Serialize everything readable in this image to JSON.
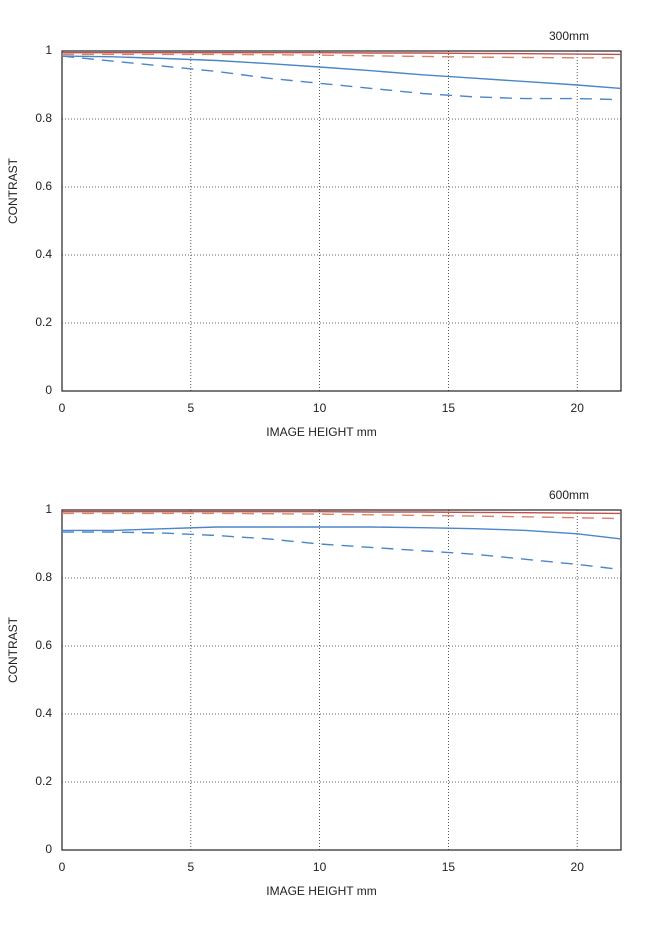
{
  "chart_data": [
    {
      "type": "line",
      "title": "300mm",
      "xlabel": "IMAGE HEIGHT   mm",
      "ylabel": "CONTRAST",
      "x": [
        0,
        2,
        4,
        6,
        8,
        10,
        12,
        14,
        16,
        18,
        20,
        21.7
      ],
      "xlim": [
        0,
        21.7
      ],
      "xticks": [
        0,
        5,
        10,
        15,
        20
      ],
      "ylim": [
        0,
        1
      ],
      "yticks": [
        0,
        0.2,
        0.4,
        0.6,
        0.8,
        1
      ],
      "grid": true,
      "series": [
        {
          "color": "#c0504d",
          "dashed": false,
          "values": [
            0.995,
            0.995,
            0.995,
            0.995,
            0.995,
            0.995,
            0.994,
            0.994,
            0.993,
            0.992,
            0.991,
            0.99
          ]
        },
        {
          "color": "#d9826a",
          "dashed": true,
          "values": [
            0.99,
            0.99,
            0.99,
            0.99,
            0.989,
            0.988,
            0.986,
            0.984,
            0.982,
            0.981,
            0.98,
            0.98
          ]
        },
        {
          "color": "#4a86c8",
          "dashed": false,
          "values": [
            0.985,
            0.983,
            0.978,
            0.972,
            0.963,
            0.953,
            0.942,
            0.93,
            0.92,
            0.91,
            0.9,
            0.89
          ]
        },
        {
          "color": "#4a86c8",
          "dashed": true,
          "values": [
            0.985,
            0.97,
            0.955,
            0.94,
            0.92,
            0.905,
            0.89,
            0.875,
            0.865,
            0.86,
            0.86,
            0.857
          ]
        }
      ]
    },
    {
      "type": "line",
      "title": "600mm",
      "xlabel": "IMAGE HEIGHT   mm",
      "ylabel": "CONTRAST",
      "x": [
        0,
        2,
        4,
        6,
        8,
        10,
        12,
        14,
        16,
        18,
        20,
        21.7
      ],
      "xlim": [
        0,
        21.7
      ],
      "xticks": [
        0,
        5,
        10,
        15,
        20
      ],
      "ylim": [
        0,
        1
      ],
      "yticks": [
        0,
        0.2,
        0.4,
        0.6,
        0.8,
        1
      ],
      "grid": true,
      "series": [
        {
          "color": "#c0504d",
          "dashed": false,
          "values": [
            0.995,
            0.995,
            0.995,
            0.995,
            0.995,
            0.995,
            0.994,
            0.994,
            0.993,
            0.992,
            0.991,
            0.99
          ]
        },
        {
          "color": "#d9826a",
          "dashed": true,
          "values": [
            0.99,
            0.99,
            0.99,
            0.99,
            0.989,
            0.988,
            0.986,
            0.984,
            0.982,
            0.98,
            0.977,
            0.975
          ]
        },
        {
          "color": "#4a86c8",
          "dashed": false,
          "values": [
            0.94,
            0.94,
            0.945,
            0.95,
            0.95,
            0.95,
            0.95,
            0.948,
            0.945,
            0.94,
            0.93,
            0.915
          ]
        },
        {
          "color": "#4a86c8",
          "dashed": true,
          "values": [
            0.935,
            0.935,
            0.932,
            0.925,
            0.915,
            0.9,
            0.89,
            0.88,
            0.87,
            0.855,
            0.84,
            0.825
          ]
        }
      ]
    }
  ]
}
